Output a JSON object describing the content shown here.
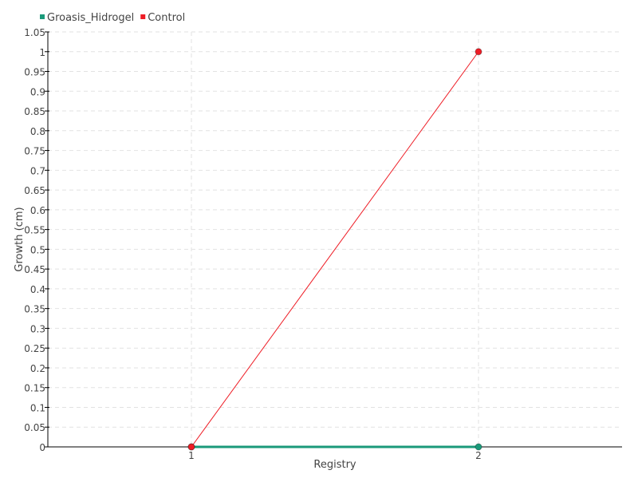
{
  "chart_data": {
    "type": "line",
    "title": "",
    "xlabel": "Registry",
    "ylabel": "Growth (cm)",
    "x": [
      1,
      2
    ],
    "x_tick_labels": [
      "1",
      "2"
    ],
    "xlim": [
      0.5,
      2.5
    ],
    "ylim": [
      0,
      1.05
    ],
    "y_ticks": [
      "0",
      "0.05",
      "0.1",
      "0.15",
      "0.2",
      "0.25",
      "0.3",
      "0.35",
      "0.4",
      "0.45",
      "0.5",
      "0.55",
      "0.6",
      "0.65",
      "0.7",
      "0.75",
      "0.8",
      "0.85",
      "0.9",
      "0.95",
      "1",
      "1.05"
    ],
    "grid": true,
    "legend_position": "top-left",
    "series": [
      {
        "name": "Groasis_Hidrogel",
        "values": [
          0,
          0
        ],
        "color": "#1a9a7a"
      },
      {
        "name": "Control",
        "values": [
          0,
          1
        ],
        "color": "#ee1c25"
      }
    ]
  }
}
